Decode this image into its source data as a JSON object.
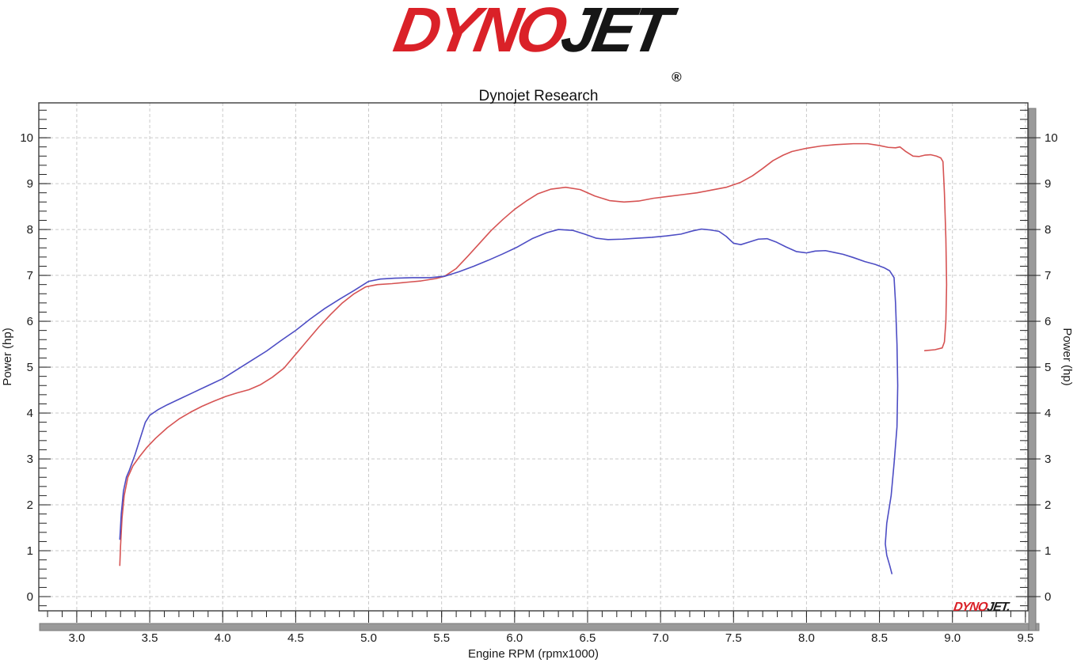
{
  "header": {
    "logo": {
      "dyno": "DYNO",
      "jet": "JET",
      "registered": "®"
    },
    "subtitle": "Dynojet Research"
  },
  "watermark": {
    "dyno": "DYNO",
    "jet": "JET."
  },
  "chart_data": {
    "type": "line",
    "title": "",
    "xlabel": "Engine RPM (rpmx1000)",
    "ylabel_left": "Power (hp)",
    "ylabel_right": "Power (hp)",
    "xlim": [
      2.74,
      9.517
    ],
    "ylim": [
      -0.31,
      10.76
    ],
    "grid": "dashed",
    "legend_position": "none",
    "x_tick_values": [
      3.0,
      3.5,
      4.0,
      4.5,
      5.0,
      5.5,
      6.0,
      6.5,
      7.0,
      7.5,
      8.0,
      8.5,
      9.0,
      9.5
    ],
    "x_tick_labels": [
      "3.0",
      "3.5",
      "4.0",
      "4.5",
      "5.0",
      "5.5",
      "6.0",
      "6.5",
      "7.0",
      "7.5",
      "8.0",
      "8.5",
      "9.0",
      "9.5"
    ],
    "y_tick_values": [
      0,
      1,
      2,
      3,
      4,
      5,
      6,
      7,
      8,
      9,
      10
    ],
    "y_tick_labels": [
      "0",
      "1",
      "2",
      "3",
      "4",
      "5",
      "6",
      "7",
      "8",
      "9",
      "10"
    ],
    "x_minor": {
      "from": 2.8,
      "to": 9.5,
      "step": 0.1
    },
    "y_minor": {
      "from": -0.2,
      "to": 10.6,
      "step": 0.2
    },
    "colors": {
      "grid": "#cacaca",
      "axis": "#3c3c3c",
      "tick_text": "#1a1a1a",
      "scrollbar_fill": "#9a9a9a",
      "scrollbar_border": "#7b7b7b",
      "red_run": "#d65353",
      "blue_run": "#4d4dc4"
    },
    "series": [
      {
        "name": "red-run",
        "color": "#d65353",
        "points": [
          [
            3.295,
            0.68
          ],
          [
            3.3,
            1.1
          ],
          [
            3.31,
            1.7
          ],
          [
            3.325,
            2.2
          ],
          [
            3.35,
            2.6
          ],
          [
            3.385,
            2.85
          ],
          [
            3.43,
            3.05
          ],
          [
            3.48,
            3.25
          ],
          [
            3.54,
            3.45
          ],
          [
            3.62,
            3.68
          ],
          [
            3.7,
            3.87
          ],
          [
            3.78,
            4.02
          ],
          [
            3.86,
            4.15
          ],
          [
            3.94,
            4.26
          ],
          [
            4.02,
            4.36
          ],
          [
            4.1,
            4.44
          ],
          [
            4.18,
            4.51
          ],
          [
            4.26,
            4.62
          ],
          [
            4.34,
            4.78
          ],
          [
            4.42,
            4.98
          ],
          [
            4.5,
            5.28
          ],
          [
            4.58,
            5.58
          ],
          [
            4.66,
            5.88
          ],
          [
            4.74,
            6.15
          ],
          [
            4.82,
            6.4
          ],
          [
            4.9,
            6.6
          ],
          [
            4.98,
            6.75
          ],
          [
            5.06,
            6.8
          ],
          [
            5.16,
            6.82
          ],
          [
            5.26,
            6.85
          ],
          [
            5.36,
            6.88
          ],
          [
            5.46,
            6.93
          ],
          [
            5.52,
            6.98
          ],
          [
            5.6,
            7.15
          ],
          [
            5.68,
            7.42
          ],
          [
            5.76,
            7.7
          ],
          [
            5.84,
            7.98
          ],
          [
            5.92,
            8.22
          ],
          [
            6.0,
            8.44
          ],
          [
            6.08,
            8.62
          ],
          [
            6.16,
            8.78
          ],
          [
            6.25,
            8.88
          ],
          [
            6.35,
            8.92
          ],
          [
            6.45,
            8.87
          ],
          [
            6.55,
            8.73
          ],
          [
            6.65,
            8.63
          ],
          [
            6.75,
            8.6
          ],
          [
            6.85,
            8.62
          ],
          [
            6.95,
            8.68
          ],
          [
            7.05,
            8.72
          ],
          [
            7.15,
            8.76
          ],
          [
            7.25,
            8.8
          ],
          [
            7.35,
            8.86
          ],
          [
            7.45,
            8.92
          ],
          [
            7.55,
            9.03
          ],
          [
            7.63,
            9.17
          ],
          [
            7.7,
            9.33
          ],
          [
            7.77,
            9.5
          ],
          [
            7.84,
            9.62
          ],
          [
            7.9,
            9.7
          ],
          [
            8.0,
            9.77
          ],
          [
            8.1,
            9.82
          ],
          [
            8.2,
            9.85
          ],
          [
            8.32,
            9.87
          ],
          [
            8.42,
            9.87
          ],
          [
            8.5,
            9.83
          ],
          [
            8.56,
            9.79
          ],
          [
            8.61,
            9.78
          ],
          [
            8.64,
            9.8
          ],
          [
            8.68,
            9.7
          ],
          [
            8.73,
            9.6
          ],
          [
            8.77,
            9.59
          ],
          [
            8.81,
            9.62
          ],
          [
            8.85,
            9.63
          ],
          [
            8.89,
            9.6
          ],
          [
            8.92,
            9.56
          ],
          [
            8.935,
            9.48
          ],
          [
            8.945,
            8.8
          ],
          [
            8.955,
            7.8
          ],
          [
            8.96,
            6.8
          ],
          [
            8.955,
            6.0
          ],
          [
            8.945,
            5.55
          ],
          [
            8.93,
            5.42
          ],
          [
            8.88,
            5.38
          ],
          [
            8.81,
            5.36
          ]
        ]
      },
      {
        "name": "blue-run",
        "color": "#4d4dc4",
        "points": [
          [
            3.295,
            1.25
          ],
          [
            3.305,
            1.8
          ],
          [
            3.32,
            2.3
          ],
          [
            3.34,
            2.6
          ],
          [
            3.36,
            2.75
          ],
          [
            3.4,
            3.1
          ],
          [
            3.44,
            3.5
          ],
          [
            3.47,
            3.8
          ],
          [
            3.5,
            3.95
          ],
          [
            3.56,
            4.08
          ],
          [
            3.62,
            4.18
          ],
          [
            3.7,
            4.3
          ],
          [
            3.8,
            4.45
          ],
          [
            3.9,
            4.6
          ],
          [
            4.0,
            4.75
          ],
          [
            4.1,
            4.95
          ],
          [
            4.2,
            5.15
          ],
          [
            4.3,
            5.35
          ],
          [
            4.4,
            5.58
          ],
          [
            4.5,
            5.8
          ],
          [
            4.6,
            6.05
          ],
          [
            4.7,
            6.28
          ],
          [
            4.8,
            6.48
          ],
          [
            4.9,
            6.67
          ],
          [
            5.0,
            6.87
          ],
          [
            5.08,
            6.92
          ],
          [
            5.18,
            6.94
          ],
          [
            5.3,
            6.95
          ],
          [
            5.42,
            6.95
          ],
          [
            5.52,
            6.98
          ],
          [
            5.62,
            7.08
          ],
          [
            5.72,
            7.2
          ],
          [
            5.82,
            7.33
          ],
          [
            5.92,
            7.47
          ],
          [
            6.02,
            7.62
          ],
          [
            6.12,
            7.8
          ],
          [
            6.22,
            7.93
          ],
          [
            6.3,
            8.0
          ],
          [
            6.4,
            7.98
          ],
          [
            6.48,
            7.9
          ],
          [
            6.56,
            7.81
          ],
          [
            6.64,
            7.78
          ],
          [
            6.74,
            7.79
          ],
          [
            6.84,
            7.81
          ],
          [
            6.94,
            7.83
          ],
          [
            7.04,
            7.86
          ],
          [
            7.14,
            7.9
          ],
          [
            7.22,
            7.97
          ],
          [
            7.28,
            8.01
          ],
          [
            7.34,
            7.99
          ],
          [
            7.4,
            7.96
          ],
          [
            7.45,
            7.85
          ],
          [
            7.5,
            7.7
          ],
          [
            7.55,
            7.67
          ],
          [
            7.61,
            7.73
          ],
          [
            7.67,
            7.79
          ],
          [
            7.73,
            7.8
          ],
          [
            7.79,
            7.73
          ],
          [
            7.86,
            7.62
          ],
          [
            7.93,
            7.52
          ],
          [
            8.0,
            7.49
          ],
          [
            8.06,
            7.53
          ],
          [
            8.13,
            7.54
          ],
          [
            8.19,
            7.5
          ],
          [
            8.25,
            7.46
          ],
          [
            8.32,
            7.39
          ],
          [
            8.4,
            7.3
          ],
          [
            8.47,
            7.24
          ],
          [
            8.53,
            7.17
          ],
          [
            8.57,
            7.1
          ],
          [
            8.6,
            6.95
          ],
          [
            8.61,
            6.4
          ],
          [
            8.62,
            5.5
          ],
          [
            8.625,
            4.6
          ],
          [
            8.62,
            3.7
          ],
          [
            8.6,
            2.9
          ],
          [
            8.58,
            2.2
          ],
          [
            8.55,
            1.6
          ],
          [
            8.54,
            1.15
          ],
          [
            8.55,
            0.9
          ],
          [
            8.57,
            0.68
          ],
          [
            8.585,
            0.5
          ]
        ]
      }
    ]
  }
}
